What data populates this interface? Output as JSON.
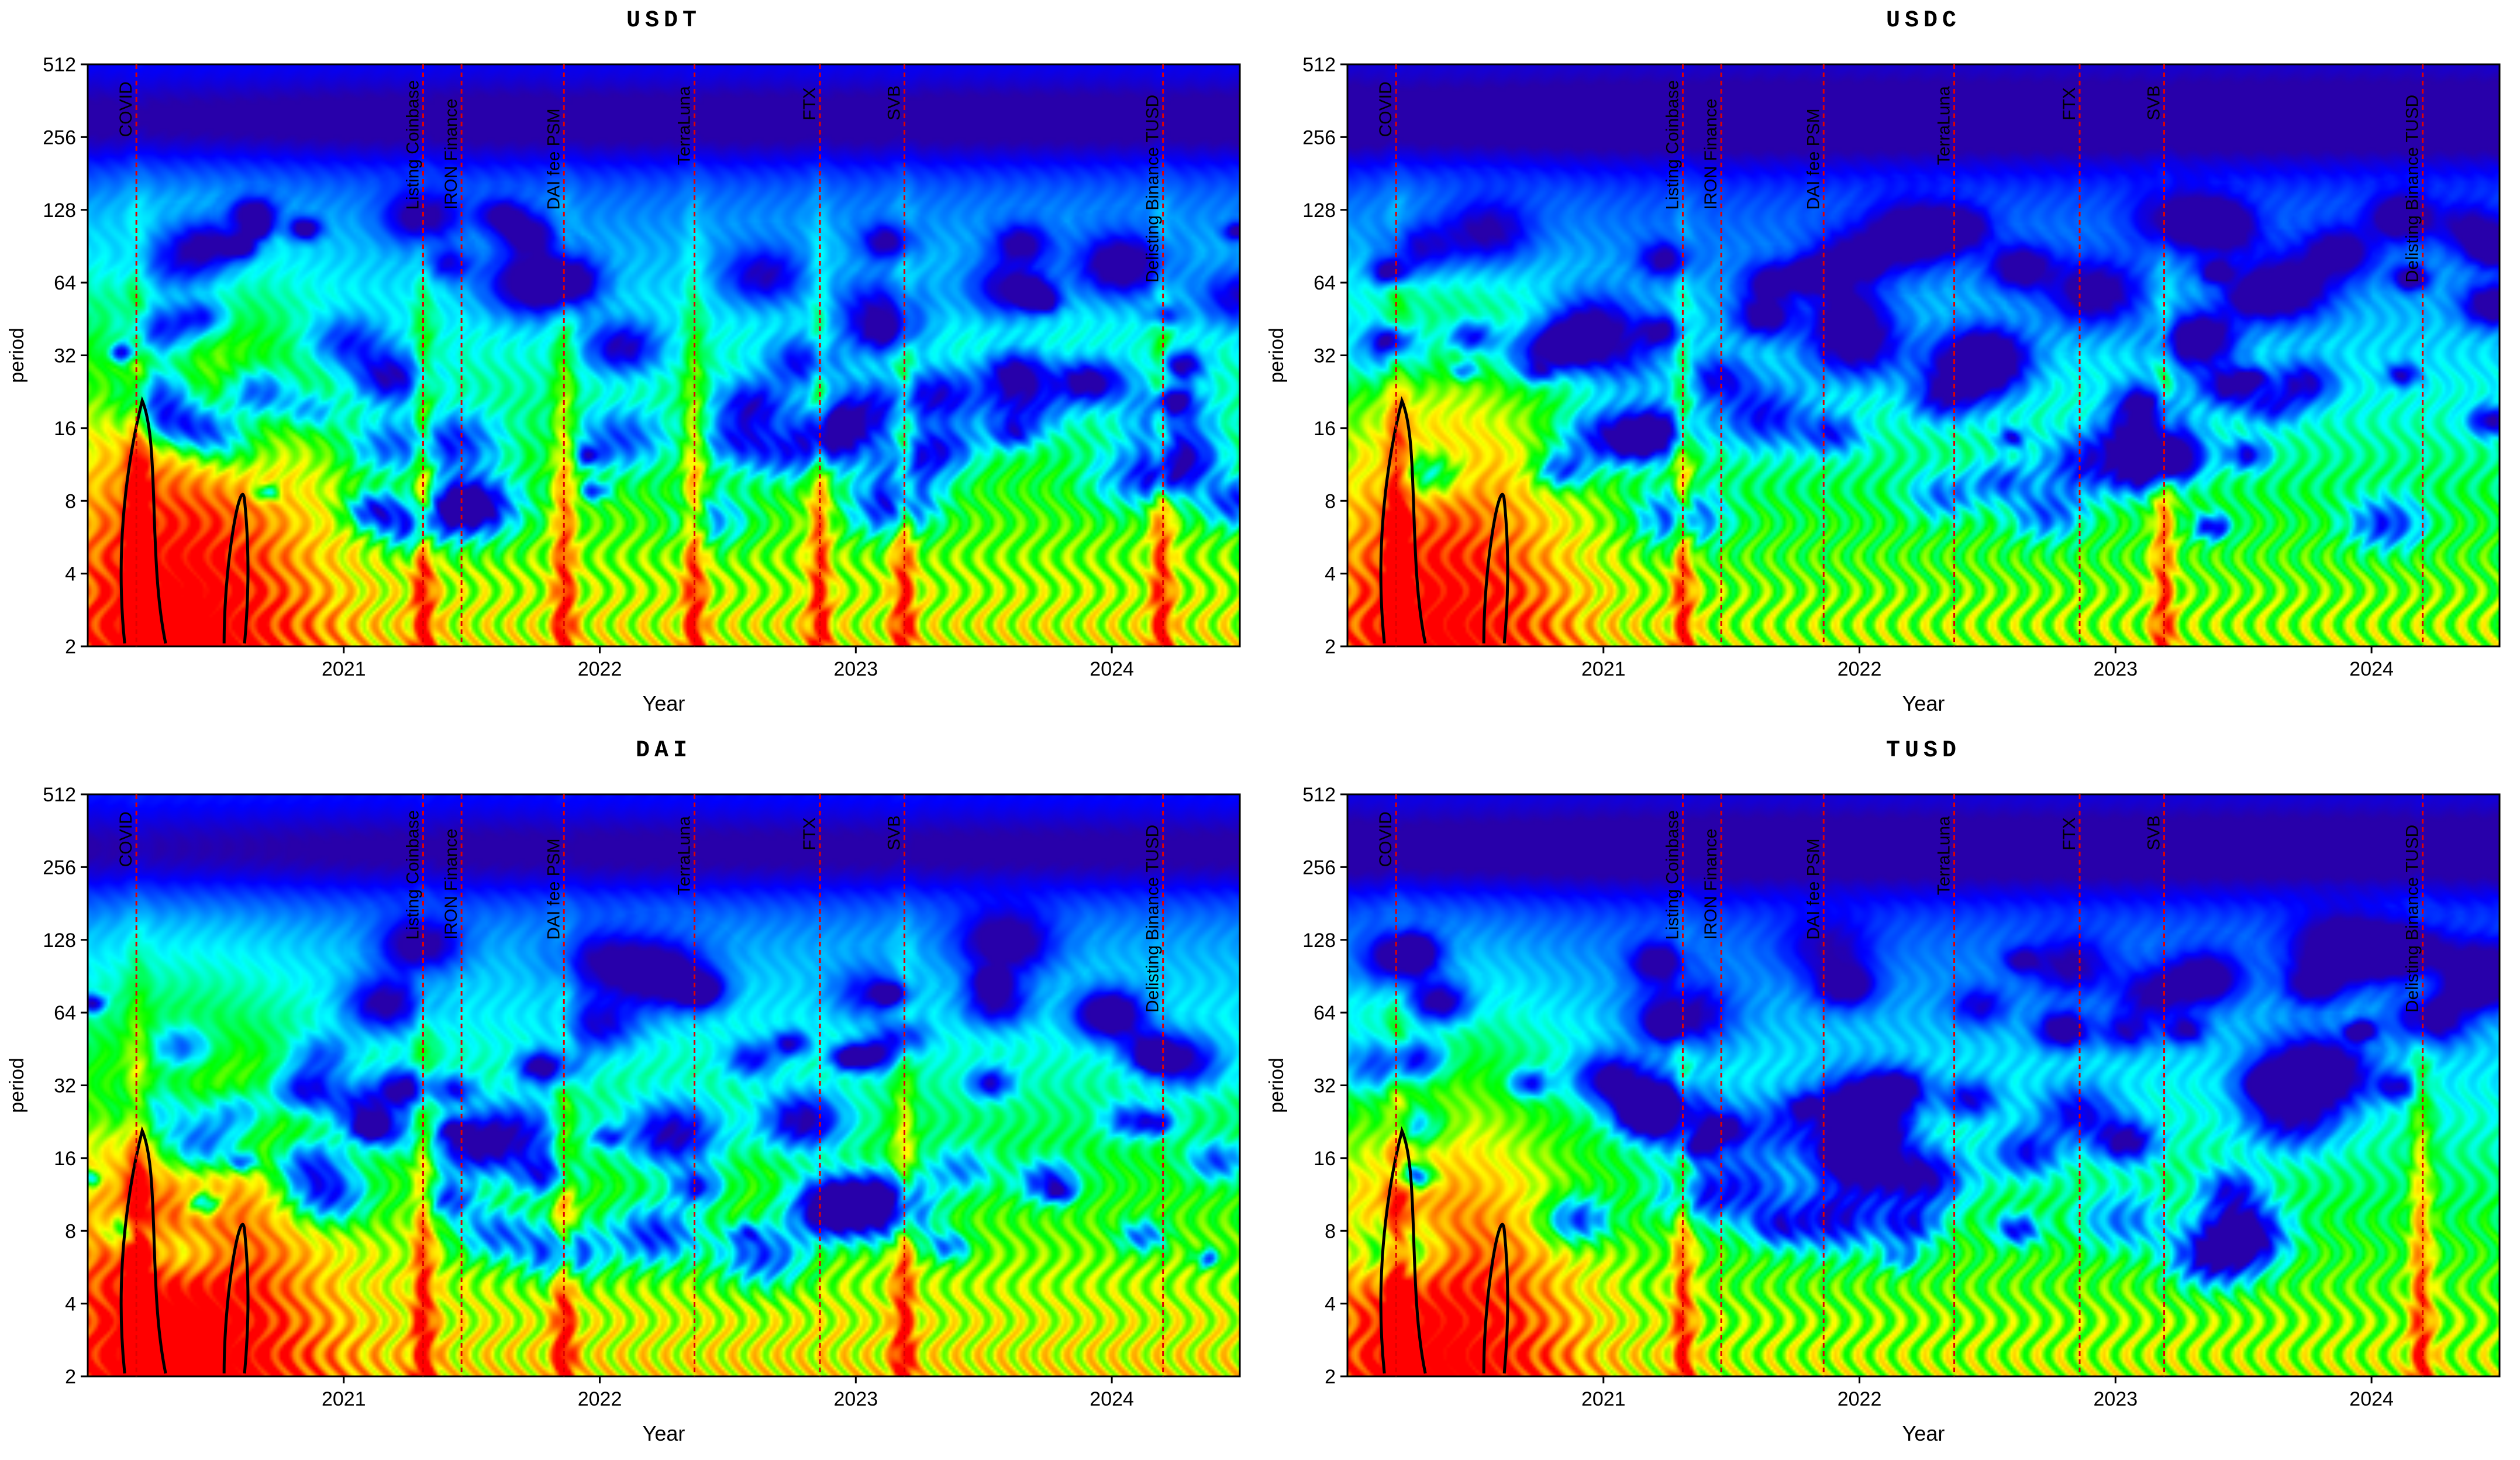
{
  "chart_data": [
    {
      "type": "heatmap",
      "title": "USDT",
      "xlabel": "Year",
      "ylabel": "period",
      "x_ticks": [
        "2021",
        "2022",
        "2023",
        "2024"
      ],
      "y_ticks": [
        "2",
        "4",
        "8",
        "16",
        "32",
        "64",
        "128",
        "256",
        "512"
      ],
      "y_scale": "log2",
      "x_range": [
        2020.0,
        2024.5
      ],
      "y_range": [
        2,
        512
      ],
      "events": [
        {
          "label": "COVID",
          "x": 2020.19
        },
        {
          "label": "Listing Coinbase",
          "x": 2021.31
        },
        {
          "label": "IRON Finance",
          "x": 2021.46
        },
        {
          "label": "DAI fee PSM",
          "x": 2021.86
        },
        {
          "label": "TerraLuna",
          "x": 2022.37
        },
        {
          "label": "FTX",
          "x": 2022.86
        },
        {
          "label": "SVB",
          "x": 2023.19
        },
        {
          "label": "Delisting Binance TUSD",
          "x": 2024.2
        }
      ],
      "label_pos": {
        "COVID": 256,
        "Listing Coinbase": 128,
        "IRON Finance": 128,
        "DAI fee PSM": 128,
        "TerraLuna": 196,
        "FTX": 300,
        "SVB": 300,
        "Delisting Binance TUSD": 64
      },
      "hot_events": [
        2020.19,
        2021.31,
        2021.86,
        2022.37,
        2022.86,
        2023.19,
        2024.2
      ],
      "base_energy": 0.45
    },
    {
      "type": "heatmap",
      "title": "USDC",
      "xlabel": "Year",
      "ylabel": "period",
      "x_ticks": [
        "2021",
        "2022",
        "2023",
        "2024"
      ],
      "y_ticks": [
        "2",
        "4",
        "8",
        "16",
        "32",
        "64",
        "128",
        "256",
        "512"
      ],
      "y_scale": "log2",
      "x_range": [
        2020.0,
        2024.5
      ],
      "y_range": [
        2,
        512
      ],
      "events": [
        {
          "label": "COVID",
          "x": 2020.19
        },
        {
          "label": "Listing Coinbase",
          "x": 2021.31
        },
        {
          "label": "IRON Finance",
          "x": 2021.46
        },
        {
          "label": "DAI fee PSM",
          "x": 2021.86
        },
        {
          "label": "TerraLuna",
          "x": 2022.37
        },
        {
          "label": "FTX",
          "x": 2022.86
        },
        {
          "label": "SVB",
          "x": 2023.19
        },
        {
          "label": "Delisting Binance TUSD",
          "x": 2024.2
        }
      ],
      "label_pos": {
        "COVID": 256,
        "Listing Coinbase": 128,
        "IRON Finance": 128,
        "DAI fee PSM": 128,
        "TerraLuna": 196,
        "FTX": 300,
        "SVB": 300,
        "Delisting Binance TUSD": 64
      },
      "hot_events": [
        2020.19,
        2021.31,
        2023.19
      ],
      "base_energy": 0.4
    },
    {
      "type": "heatmap",
      "title": "DAI",
      "xlabel": "Year",
      "ylabel": "period",
      "x_ticks": [
        "2021",
        "2022",
        "2023",
        "2024"
      ],
      "y_ticks": [
        "2",
        "4",
        "8",
        "16",
        "32",
        "64",
        "128",
        "256",
        "512"
      ],
      "y_scale": "log2",
      "x_range": [
        2020.0,
        2024.5
      ],
      "y_range": [
        2,
        512
      ],
      "events": [
        {
          "label": "COVID",
          "x": 2020.19
        },
        {
          "label": "Listing Coinbase",
          "x": 2021.31
        },
        {
          "label": "IRON Finance",
          "x": 2021.46
        },
        {
          "label": "DAI fee PSM",
          "x": 2021.86
        },
        {
          "label": "TerraLuna",
          "x": 2022.37
        },
        {
          "label": "FTX",
          "x": 2022.86
        },
        {
          "label": "SVB",
          "x": 2023.19
        },
        {
          "label": "Delisting Binance TUSD",
          "x": 2024.2
        }
      ],
      "label_pos": {
        "COVID": 256,
        "Listing Coinbase": 128,
        "IRON Finance": 128,
        "DAI fee PSM": 128,
        "TerraLuna": 196,
        "FTX": 300,
        "SVB": 300,
        "Delisting Binance TUSD": 64
      },
      "hot_events": [
        2020.19,
        2021.31,
        2021.86,
        2023.19
      ],
      "base_energy": 0.48
    },
    {
      "type": "heatmap",
      "title": "TUSD",
      "xlabel": "Year",
      "ylabel": "period",
      "x_ticks": [
        "2021",
        "2022",
        "2023",
        "2024"
      ],
      "y_ticks": [
        "2",
        "4",
        "8",
        "16",
        "32",
        "64",
        "128",
        "256",
        "512"
      ],
      "y_scale": "log2",
      "x_range": [
        2020.0,
        2024.5
      ],
      "y_range": [
        2,
        512
      ],
      "events": [
        {
          "label": "COVID",
          "x": 2020.19
        },
        {
          "label": "Listing Coinbase",
          "x": 2021.31
        },
        {
          "label": "IRON Finance",
          "x": 2021.46
        },
        {
          "label": "DAI fee PSM",
          "x": 2021.86
        },
        {
          "label": "TerraLuna",
          "x": 2022.37
        },
        {
          "label": "FTX",
          "x": 2022.86
        },
        {
          "label": "SVB",
          "x": 2023.19
        },
        {
          "label": "Delisting Binance TUSD",
          "x": 2024.2
        }
      ],
      "label_pos": {
        "COVID": 256,
        "Listing Coinbase": 128,
        "IRON Finance": 128,
        "DAI fee PSM": 128,
        "TerraLuna": 196,
        "FTX": 300,
        "SVB": 300,
        "Delisting Binance TUSD": 64
      },
      "hot_events": [
        2020.19,
        2021.31,
        2024.2
      ],
      "base_energy": 0.42
    }
  ],
  "colors": {
    "event_line": "#e00000",
    "contour": "#000000",
    "axis": "#000000"
  }
}
